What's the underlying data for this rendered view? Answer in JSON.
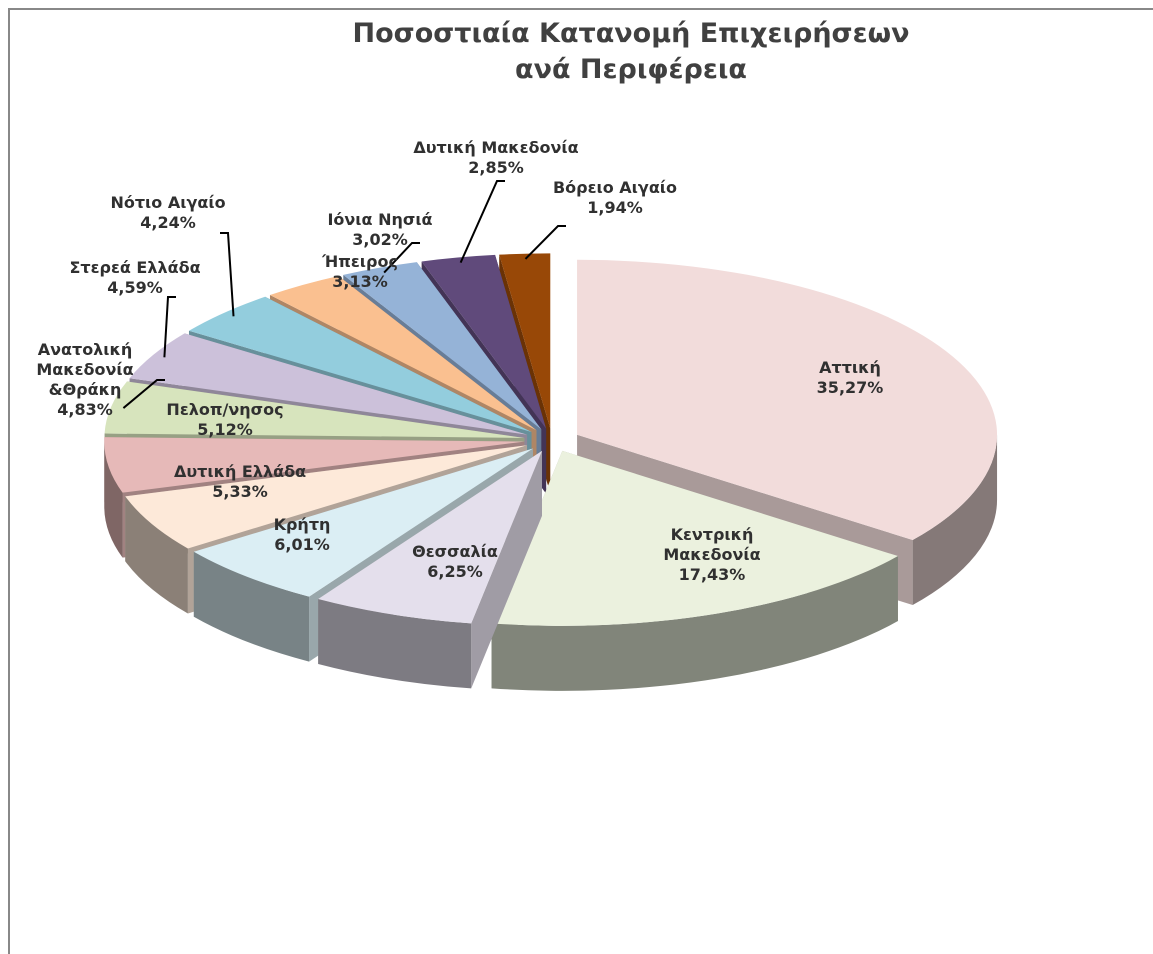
{
  "chart_data": {
    "type": "pie",
    "title": "Ποσοστιαία Κατανομή Επιχειρήσεων ανά Περιφέρεια",
    "categories": [
      "Αττική",
      "Κεντρική Μακεδονία",
      "Θεσσαλία",
      "Κρήτη",
      "Δυτική Ελλάδα",
      "Πελοπ/νησος",
      "Ανατολική Μακεδονία &Θράκη",
      "Στερεά Ελλάδα",
      "Νότιο Αιγαίο",
      "Ήπειρος",
      "Ιόνια Νησιά",
      "Δυτική Μακεδονία",
      "Βόρειο Αιγαίο"
    ],
    "values": [
      35.27,
      17.43,
      6.25,
      6.01,
      5.33,
      5.12,
      4.83,
      4.59,
      4.24,
      3.13,
      3.02,
      2.85,
      1.94
    ],
    "value_labels": [
      "35,27%",
      "17,43%",
      "6,25%",
      "6,01%",
      "5,33%",
      "5,12%",
      "4,83%",
      "4,59%",
      "4,24%",
      "3,13%",
      "3,02%",
      "2,85%",
      "1,94%"
    ],
    "colors": [
      "#f2dcdb",
      "#ebf1de",
      "#e4dfec",
      "#dbeef4",
      "#fde9d9",
      "#e6b9b8",
      "#d7e4bd",
      "#ccc1da",
      "#93cddd",
      "#fac090",
      "#95b3d7",
      "#604a7b",
      "#984807"
    ]
  }
}
